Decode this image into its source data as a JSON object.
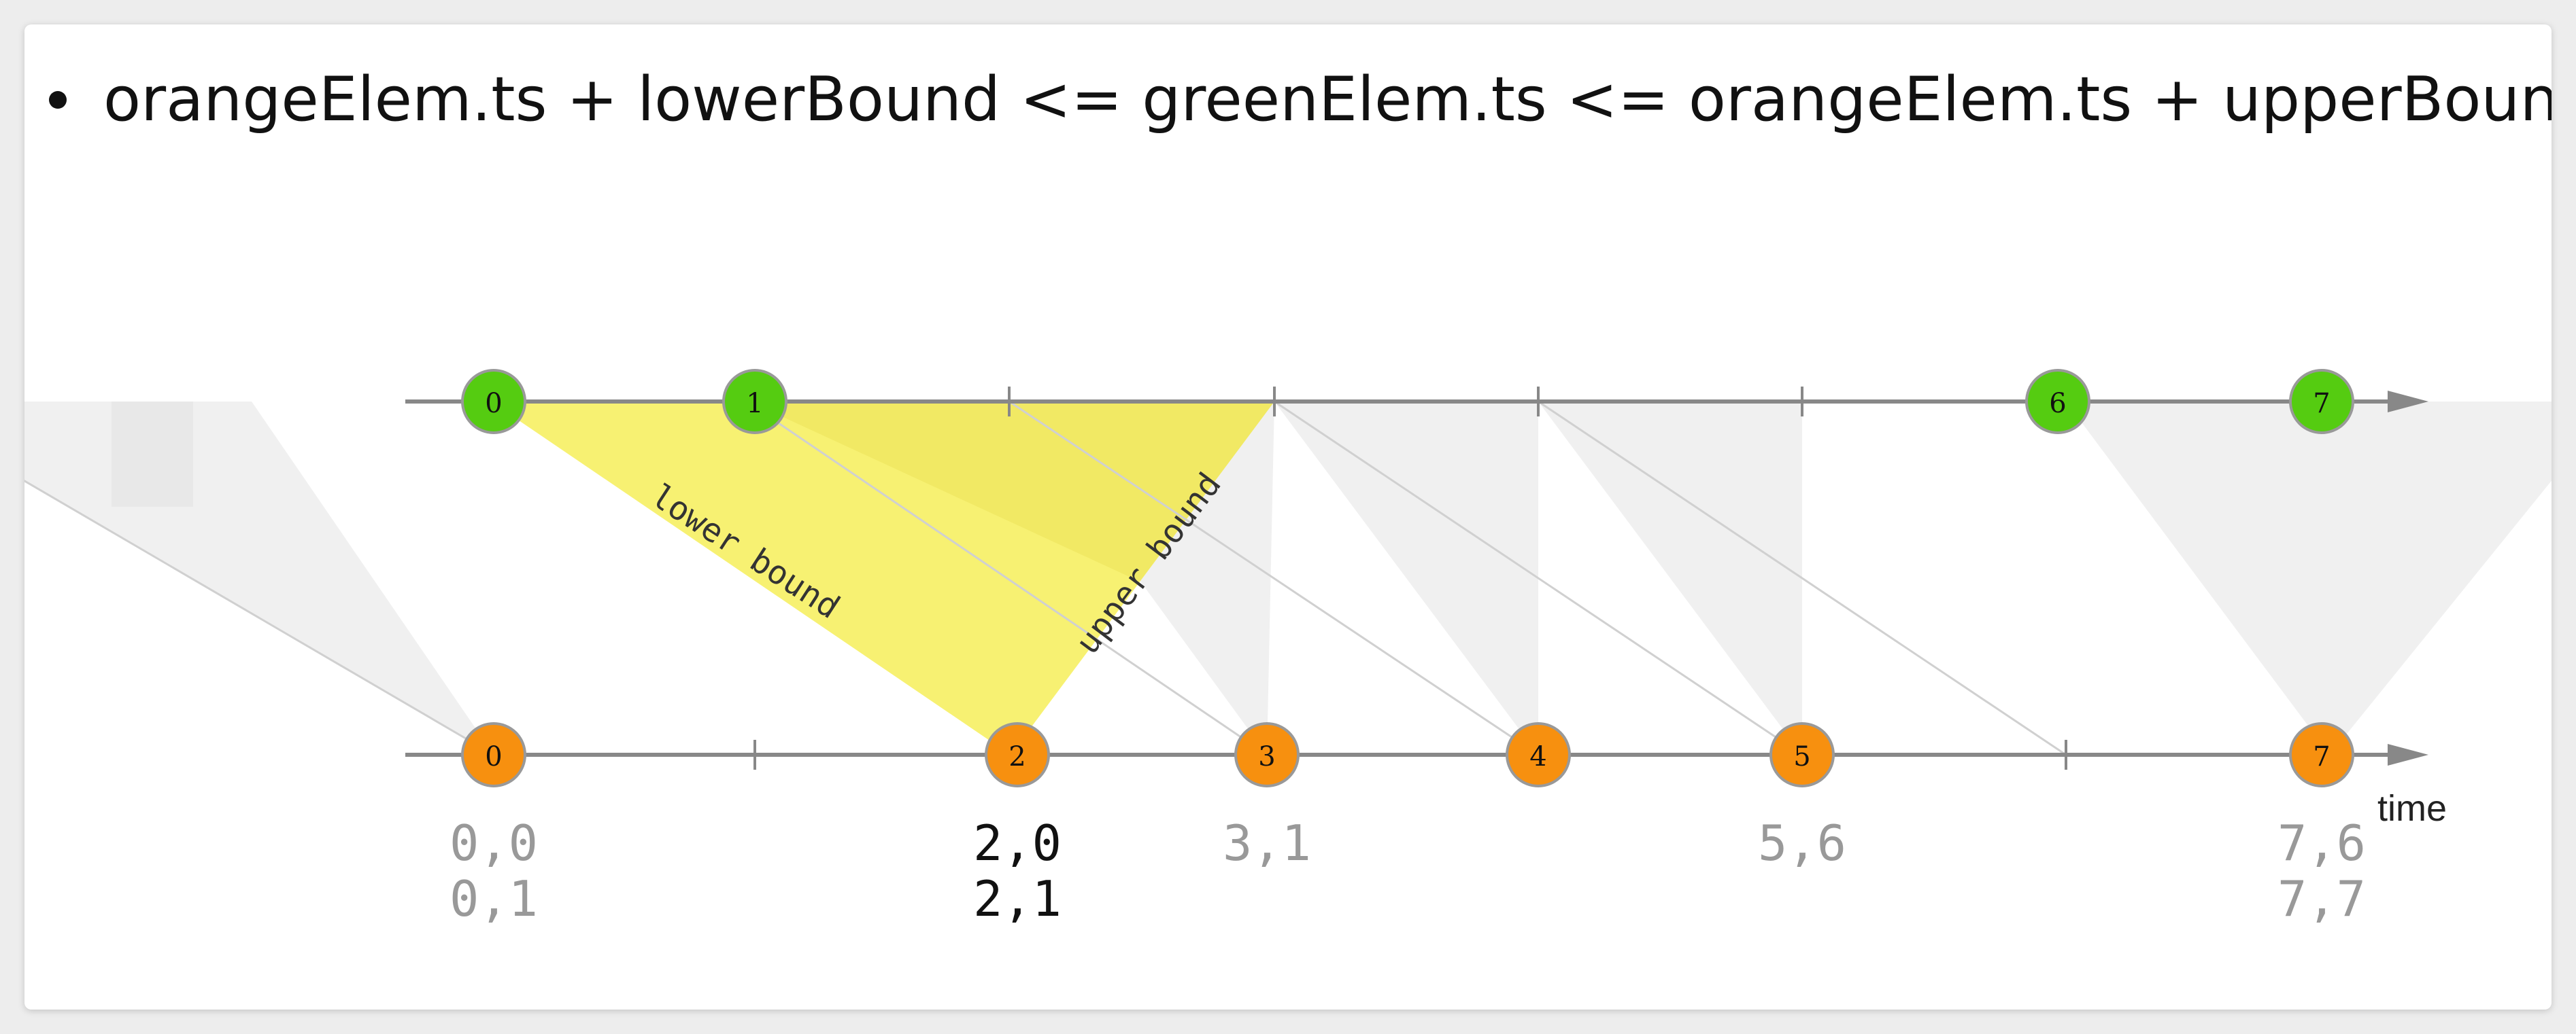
{
  "bullet": {
    "text": "orangeElem.ts + lowerBound <= greenElem.ts <= orangeElem.ts + upperBound"
  },
  "diagram": {
    "time_label": "time",
    "lower_bound_label": "lower bound",
    "upper_bound_label": "upper bound",
    "colors": {
      "green": "#55cc11",
      "orange": "#f7900f",
      "highlight": "#f7f06a",
      "window": "#e6e6e6",
      "axis": "#888888"
    },
    "green_stream": [
      {
        "label": "0"
      },
      {
        "label": "1"
      },
      {
        "label": "6"
      },
      {
        "label": "7"
      }
    ],
    "orange_stream": [
      {
        "label": "0"
      },
      {
        "label": "2"
      },
      {
        "label": "3"
      },
      {
        "label": "4"
      },
      {
        "label": "5"
      },
      {
        "label": "7"
      }
    ],
    "join_results": [
      {
        "lines": [
          "0,0",
          "0,1"
        ],
        "highlighted": false
      },
      {
        "lines": [
          "2,0",
          "2,1"
        ],
        "highlighted": true
      },
      {
        "lines": [
          "3,1"
        ],
        "highlighted": false
      },
      {
        "lines": [
          "5,6"
        ],
        "highlighted": false
      },
      {
        "lines": [
          "7,6",
          "7,7"
        ],
        "highlighted": false
      }
    ]
  }
}
